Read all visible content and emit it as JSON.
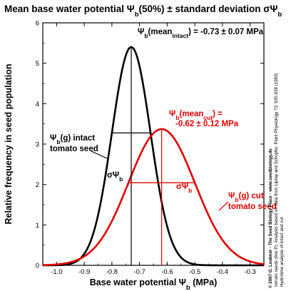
{
  "chart_data": {
    "type": "line",
    "title": "Mean base water potential Ψb(50%) ± standard deviation σΨb",
    "xlabel": "Base water potential Ψb (MPa)",
    "ylabel": "Relative frequency in seed population",
    "xlim": [
      -1.05,
      -0.25
    ],
    "ylim": [
      0,
      6
    ],
    "x_ticks": [
      -1.0,
      -0.9,
      -0.8,
      -0.7,
      -0.6,
      -0.5,
      -0.4,
      -0.3
    ],
    "x_tick_labels": [
      "-1.0",
      "-0.9",
      "-0.8",
      "-0.7",
      "-0.6",
      "-0.5",
      "-0.4",
      "-0.3"
    ],
    "y_ticks": [
      0,
      1,
      2,
      3,
      4,
      5,
      6
    ],
    "y_tick_labels": [
      "0",
      "1",
      "2",
      "3",
      "4",
      "5",
      "6"
    ],
    "grid": false,
    "series": [
      {
        "name": "Ψb(g) intact tomato seed",
        "color": "#000000",
        "distribution": "normal",
        "mean": -0.73,
        "sd": 0.07,
        "peak": 5.4
      },
      {
        "name": "Ψb(g) cut tomato seed",
        "color": "#e00000",
        "distribution": "normal",
        "mean": -0.62,
        "sd": 0.12,
        "peak": 3.37
      }
    ],
    "annotations": {
      "intact_mean": "Ψb(meanintact) = -0.73 ± 0.07 MPa",
      "cut_mean_line1": "Ψb(meancut) =",
      "cut_mean_line2": "-0.62 ± 0.12 MPa",
      "intact_label_line1": "Ψb(g) intact",
      "intact_label_line2": "tomato seed",
      "cut_label_line1": "Ψb(g) cut",
      "cut_label_line2": "tomato seed",
      "sigma_intact": "σΨb",
      "sigma_cut": "σΨb"
    },
    "side_notes": {
      "copyright": "© 2007 G. Leubner - The Seed Biology Place - www.seedbiology.de",
      "source_line1": "Hydrotime analysis of intact and cut",
      "source_line2": "tomato seeds (line P). Analysis based on data from Liptay and Schopfer, Plant Physiology 73: 935-938 (1983)"
    }
  }
}
